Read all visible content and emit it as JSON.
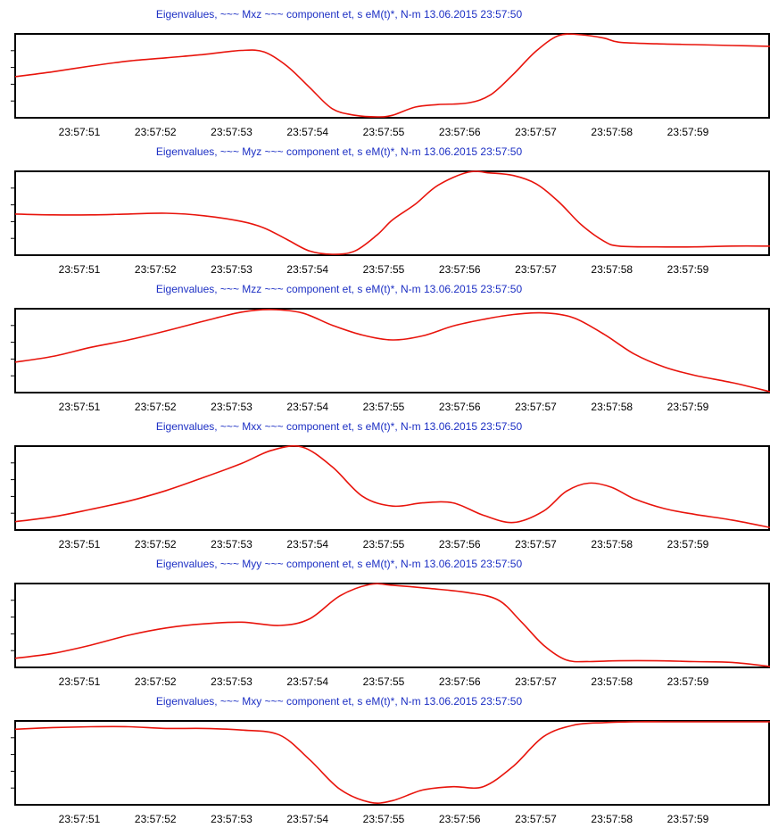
{
  "colors": {
    "line": "#e8140c",
    "title": "#1c2fc4",
    "frame": "#000000",
    "background": "#ffffff"
  },
  "chart_data": [
    {
      "type": "line",
      "title": "Eigenvalues, ~~~ Mxz ~~~ component  et, s  eM(t)*, N-m 13.06.2015  23:57:50",
      "x_tick_labels": [
        "23:57:51",
        "23:57:52",
        "23:57:53",
        "23:57:54",
        "23:57:55",
        "23:57:56",
        "23:57:57",
        "23:57:58",
        "23:57:59"
      ],
      "xlim": [
        50.0,
        60.0
      ],
      "ylim": [
        0,
        1
      ],
      "series": [
        {
          "x": [
            50.0,
            50.5,
            51.0,
            51.5,
            52.0,
            52.5,
            53.0,
            53.3,
            53.6,
            53.9,
            54.2,
            54.5,
            54.8,
            55.0,
            55.3,
            55.6,
            56.0,
            56.3,
            56.6,
            56.9,
            57.2,
            57.5,
            57.8,
            58.0,
            58.5,
            59.0,
            59.5,
            60.0
          ],
          "y": [
            0.49,
            0.55,
            0.62,
            0.68,
            0.72,
            0.76,
            0.81,
            0.79,
            0.62,
            0.36,
            0.1,
            0.02,
            0.0,
            0.02,
            0.12,
            0.15,
            0.17,
            0.27,
            0.52,
            0.8,
            0.99,
            1.0,
            0.96,
            0.91,
            0.89,
            0.88,
            0.87,
            0.86
          ]
        }
      ]
    },
    {
      "type": "line",
      "title": "Eigenvalues, ~~~ Myz ~~~ component  et, s  eM(t)*, N-m 13.06.2015  23:57:50",
      "x_tick_labels": [
        "23:57:51",
        "23:57:52",
        "23:57:53",
        "23:57:54",
        "23:57:55",
        "23:57:56",
        "23:57:57",
        "23:57:58",
        "23:57:59"
      ],
      "xlim": [
        50.0,
        60.0
      ],
      "ylim": [
        0,
        1
      ],
      "series": [
        {
          "x": [
            50.0,
            50.5,
            51.0,
            51.5,
            52.0,
            52.5,
            53.0,
            53.3,
            53.6,
            53.9,
            54.2,
            54.5,
            54.8,
            55.0,
            55.3,
            55.6,
            56.0,
            56.3,
            56.6,
            56.9,
            57.2,
            57.5,
            57.8,
            58.0,
            58.5,
            59.0,
            59.5,
            60.0
          ],
          "y": [
            0.49,
            0.48,
            0.48,
            0.49,
            0.5,
            0.47,
            0.4,
            0.32,
            0.18,
            0.04,
            0.0,
            0.04,
            0.24,
            0.42,
            0.61,
            0.84,
            1.0,
            0.99,
            0.96,
            0.86,
            0.64,
            0.36,
            0.16,
            0.1,
            0.09,
            0.09,
            0.1,
            0.1
          ]
        }
      ]
    },
    {
      "type": "line",
      "title": "Eigenvalues, ~~~ Mzz ~~~ component  et, s  eM(t)*, N-m 13.06.2015  23:57:50",
      "x_tick_labels": [
        "23:57:51",
        "23:57:52",
        "23:57:53",
        "23:57:54",
        "23:57:55",
        "23:57:56",
        "23:57:57",
        "23:57:58",
        "23:57:59"
      ],
      "xlim": [
        50.0,
        60.0
      ],
      "ylim": [
        0,
        1
      ],
      "series": [
        {
          "x": [
            50.0,
            50.5,
            51.0,
            51.5,
            52.0,
            52.5,
            53.0,
            53.4,
            53.8,
            54.2,
            54.6,
            55.0,
            55.4,
            55.8,
            56.2,
            56.6,
            57.0,
            57.4,
            57.8,
            58.2,
            58.6,
            59.0,
            59.5,
            60.0
          ],
          "y": [
            0.36,
            0.43,
            0.54,
            0.63,
            0.74,
            0.86,
            0.97,
            1.0,
            0.96,
            0.81,
            0.69,
            0.63,
            0.68,
            0.8,
            0.88,
            0.94,
            0.96,
            0.9,
            0.7,
            0.46,
            0.3,
            0.2,
            0.11,
            0.0
          ]
        }
      ]
    },
    {
      "type": "line",
      "title": "Eigenvalues, ~~~ Mxx ~~~ component  et, s  eM(t)*, N-m 13.06.2015  23:57:50",
      "x_tick_labels": [
        "23:57:51",
        "23:57:52",
        "23:57:53",
        "23:57:54",
        "23:57:55",
        "23:57:56",
        "23:57:57",
        "23:57:58",
        "23:57:59"
      ],
      "xlim": [
        50.0,
        60.0
      ],
      "ylim": [
        0,
        1
      ],
      "series": [
        {
          "x": [
            50.0,
            50.5,
            51.0,
            51.5,
            52.0,
            52.5,
            53.0,
            53.4,
            53.8,
            54.2,
            54.6,
            55.0,
            55.4,
            55.8,
            56.2,
            56.6,
            57.0,
            57.3,
            57.6,
            57.9,
            58.2,
            58.6,
            59.0,
            59.5,
            60.0
          ],
          "y": [
            0.09,
            0.15,
            0.24,
            0.34,
            0.47,
            0.63,
            0.8,
            0.96,
            1.0,
            0.76,
            0.4,
            0.28,
            0.32,
            0.32,
            0.17,
            0.08,
            0.22,
            0.46,
            0.56,
            0.51,
            0.37,
            0.25,
            0.18,
            0.11,
            0.02
          ]
        }
      ]
    },
    {
      "type": "line",
      "title": "Eigenvalues, ~~~ Myy ~~~ component  et, s  eM(t)*, N-m 13.06.2015  23:57:50",
      "x_tick_labels": [
        "23:57:51",
        "23:57:52",
        "23:57:53",
        "23:57:54",
        "23:57:55",
        "23:57:56",
        "23:57:57",
        "23:57:58",
        "23:57:59"
      ],
      "xlim": [
        50.0,
        60.0
      ],
      "ylim": [
        0,
        1
      ],
      "series": [
        {
          "x": [
            50.0,
            50.5,
            51.0,
            51.5,
            52.0,
            52.5,
            53.0,
            53.5,
            53.9,
            54.3,
            54.7,
            55.0,
            55.5,
            56.0,
            56.4,
            56.7,
            57.0,
            57.3,
            57.6,
            58.0,
            58.5,
            59.0,
            59.5,
            60.0
          ],
          "y": [
            0.1,
            0.16,
            0.26,
            0.38,
            0.47,
            0.52,
            0.54,
            0.5,
            0.58,
            0.86,
            1.0,
            0.99,
            0.95,
            0.9,
            0.81,
            0.55,
            0.26,
            0.08,
            0.06,
            0.07,
            0.07,
            0.06,
            0.05,
            0.0
          ]
        }
      ]
    },
    {
      "type": "line",
      "title": "Eigenvalues, ~~~ Mxy ~~~ component  et, s  eM(t)*, N-m 13.06.2015  23:57:50",
      "x_tick_labels": [
        "23:57:51",
        "23:57:52",
        "23:57:53",
        "23:57:54",
        "23:57:55",
        "23:57:56",
        "23:57:57",
        "23:57:58",
        "23:57:59"
      ],
      "xlim": [
        50.0,
        60.0
      ],
      "ylim": [
        0,
        1
      ],
      "series": [
        {
          "x": [
            50.0,
            50.5,
            51.0,
            51.5,
            52.0,
            52.5,
            53.0,
            53.5,
            53.9,
            54.3,
            54.7,
            55.0,
            55.4,
            55.8,
            56.2,
            56.6,
            57.0,
            57.4,
            57.8,
            58.2,
            58.6,
            59.0,
            59.5,
            60.0
          ],
          "y": [
            0.91,
            0.93,
            0.94,
            0.94,
            0.92,
            0.92,
            0.9,
            0.84,
            0.54,
            0.18,
            0.02,
            0.04,
            0.17,
            0.21,
            0.21,
            0.46,
            0.82,
            0.96,
            0.99,
            1.0,
            1.0,
            1.0,
            1.0,
            1.0
          ]
        }
      ]
    }
  ]
}
